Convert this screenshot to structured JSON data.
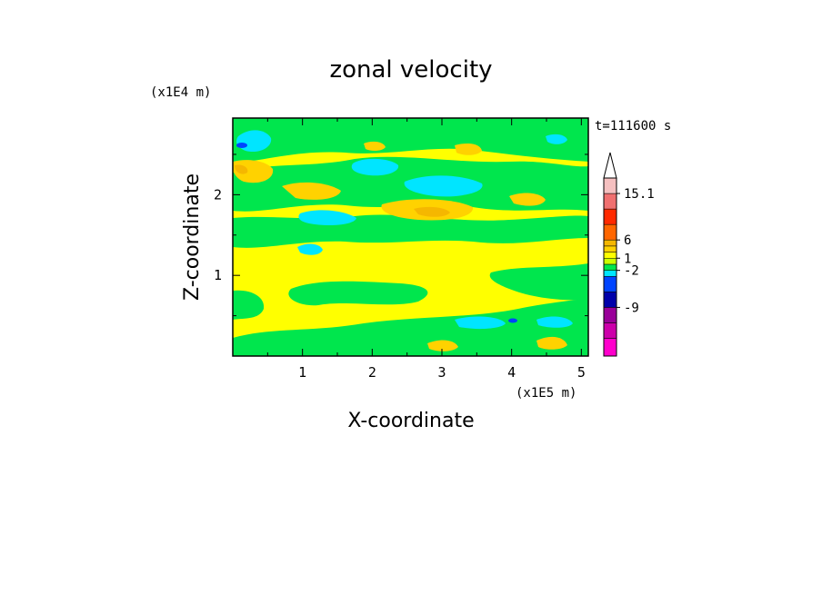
{
  "chart_data": {
    "type": "contour",
    "title": "zonal velocity",
    "time_label": "t=111600 s",
    "xlabel": "X-coordinate",
    "ylabel": "Z-coordinate",
    "x_unit": "(x1E5 m)",
    "y_unit": "(x1E4 m)",
    "xlim": [
      0.0,
      5.1
    ],
    "ylim": [
      0.0,
      2.95
    ],
    "x_ticks": [
      1,
      2,
      3,
      4,
      5
    ],
    "y_ticks": [
      1,
      2
    ],
    "colorbar": {
      "labels": [
        "15.1",
        "6",
        "1",
        "-2",
        "-9"
      ],
      "label_values": [
        15.1,
        6,
        1,
        -2,
        -9
      ],
      "colors": [
        "#ff00cc",
        "#cc00aa",
        "#990099",
        "#0000aa",
        "#0044ff",
        "#00e5ff",
        "#00e64d",
        "#ccff00",
        "#ffff00",
        "#ffd200",
        "#f5b700",
        "#ff6600",
        "#ff2a00",
        "#f07070",
        "#f5c0c0"
      ]
    },
    "fill_levels": [
      {
        "name": "background",
        "color": "#ffff00"
      },
      {
        "name": "negative-band",
        "color": "#00e64d"
      },
      {
        "name": "strong-negative",
        "color": "#00e5ff"
      },
      {
        "name": "positive",
        "color": "#ffd200"
      },
      {
        "name": "strong-positive",
        "color": "#f5b700"
      },
      {
        "name": "extreme-negative",
        "color": "#0044ff"
      }
    ]
  }
}
